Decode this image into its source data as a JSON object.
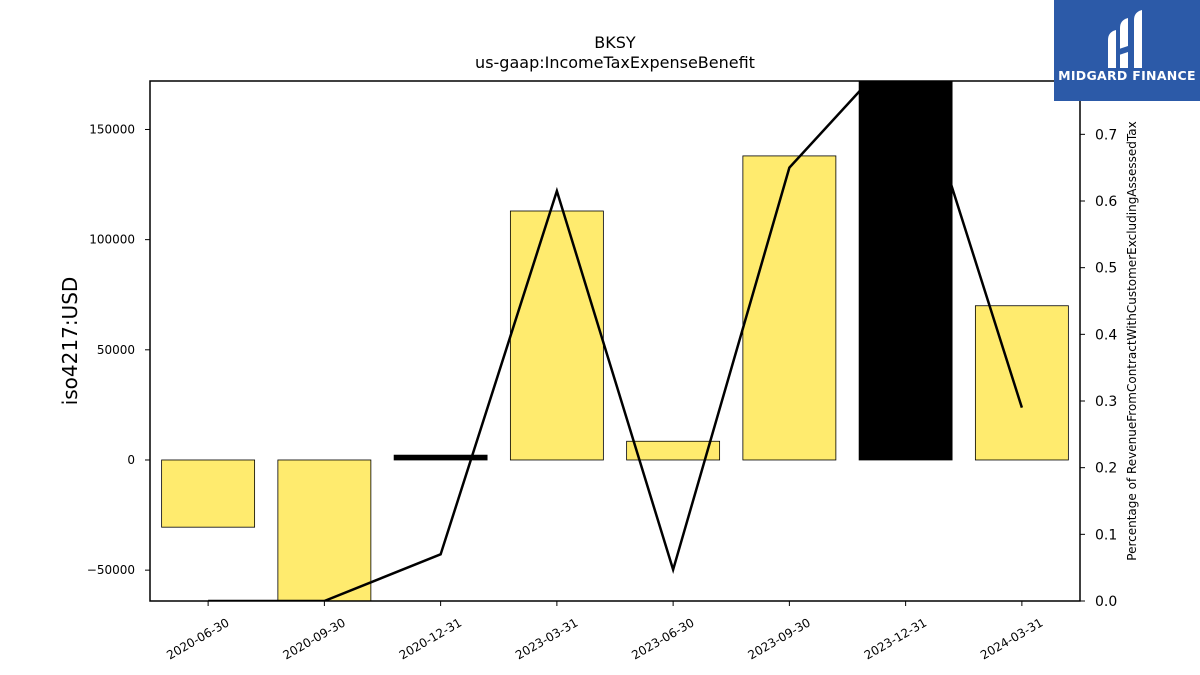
{
  "chart_data": {
    "type": "bar",
    "title": "BKSY",
    "subtitle": "us-gaap:IncomeTaxExpenseBenefit",
    "ylabel": "iso4217:USD",
    "y2label": "Percentage of RevenueFromContractWithCustomerExcludingAssessedTax",
    "categories": [
      "2020-06-30",
      "2020-09-30",
      "2020-12-31",
      "2023-03-31",
      "2023-06-30",
      "2023-09-30",
      "2023-12-31",
      "2024-03-31"
    ],
    "bar_values": [
      -30500,
      -65000,
      2200,
      113000,
      8500,
      138000,
      172000,
      70000
    ],
    "bar_colors": [
      "#ffeb6e",
      "#ffeb6e",
      "#000000",
      "#ffeb6e",
      "#ffeb6e",
      "#ffeb6e",
      "#000000",
      "#ffeb6e"
    ],
    "line_values": [
      0.0,
      0.0,
      0.07,
      0.615,
      0.047,
      0.65,
      0.84,
      0.29
    ],
    "ylim": [
      -64000,
      172000
    ],
    "y2lim": [
      0.0,
      0.78
    ],
    "yticks": [
      -50000,
      0,
      50000,
      100000,
      150000
    ],
    "y2ticks": [
      0.0,
      0.1,
      0.2,
      0.3,
      0.4,
      0.5,
      0.6,
      0.7
    ],
    "ytick_labels": [
      "−50000",
      "0",
      "50000",
      "100000",
      "150000"
    ],
    "y2tick_labels": [
      "0.0",
      "0.1",
      "0.2",
      "0.3",
      "0.4",
      "0.5",
      "0.6",
      "0.7"
    ],
    "grid": false
  },
  "logo": {
    "brand": "MIDGARD FINANCE"
  }
}
